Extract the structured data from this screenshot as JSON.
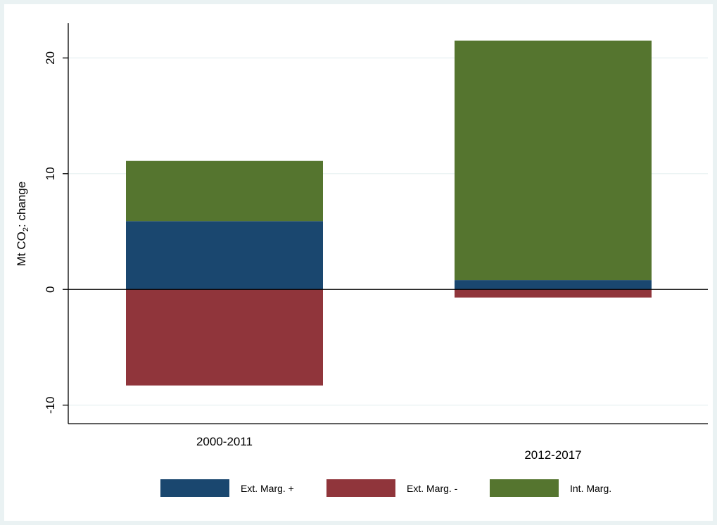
{
  "chart_data": {
    "type": "bar",
    "stacked": true,
    "categories": [
      "2000-2011",
      "2012-2017"
    ],
    "series": [
      {
        "name": "Ext. Marg. +",
        "color": "#1a476f",
        "values": [
          5.9,
          0.8
        ]
      },
      {
        "name": "Ext. Marg. -",
        "color": "#90353b",
        "values": [
          -8.3,
          -0.7
        ]
      },
      {
        "name": "Int. Marg.",
        "color": "#55752f",
        "values": [
          5.2,
          20.7
        ]
      }
    ],
    "ylabel": {
      "main": "Mt CO",
      "subscript": "2",
      "suffix": ": change"
    },
    "yticks": [
      "-10",
      "0",
      "10",
      "20"
    ],
    "ylim": [
      -11.6,
      23.0
    ],
    "grid": true,
    "zero_line": true,
    "legend_position": "bottom",
    "colors": {
      "outer_background": "#eaf2f3",
      "plot_background": "#ffffff",
      "gridline": "#eaf2f3"
    }
  }
}
